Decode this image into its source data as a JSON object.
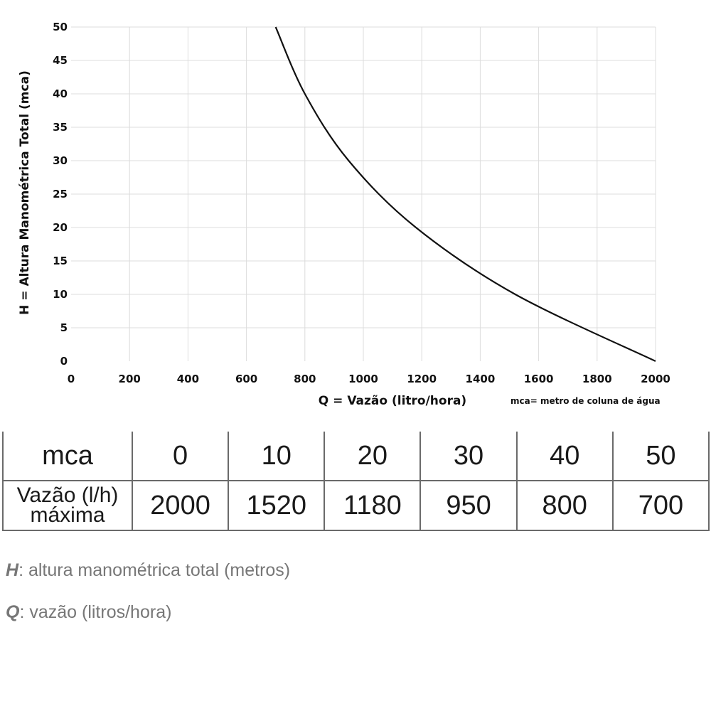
{
  "chart_data": {
    "type": "line",
    "ylabel": "H = Altura Manométrica Total (mca)",
    "xlabel": "Q = Vazão (litro/hora)",
    "note": "mca= metro de coluna de água",
    "xlim": [
      0,
      2000
    ],
    "ylim": [
      0,
      50
    ],
    "x_ticks": [
      "0",
      "200",
      "400",
      "600",
      "800",
      "1000",
      "1200",
      "1400",
      "1600",
      "1800",
      "2000"
    ],
    "y_ticks": [
      "0",
      "5",
      "10",
      "15",
      "20",
      "25",
      "30",
      "35",
      "40",
      "45",
      "50"
    ],
    "grid": true,
    "series": [
      {
        "color": "#111111",
        "points": [
          {
            "x": 700,
            "y": 50
          },
          {
            "x": 800,
            "y": 40
          },
          {
            "x": 950,
            "y": 30
          },
          {
            "x": 1180,
            "y": 20
          },
          {
            "x": 1520,
            "y": 10
          },
          {
            "x": 2000,
            "y": 0
          }
        ]
      }
    ]
  },
  "table": {
    "row1_label": "mca",
    "row1_values": [
      "0",
      "10",
      "20",
      "30",
      "40",
      "50"
    ],
    "row2_label_line1": "Vazão (l/h)",
    "row2_label_line2": "máxima",
    "row2_values": [
      "2000",
      "1520",
      "1180",
      "950",
      "800",
      "700"
    ]
  },
  "legend": {
    "h_symbol": "H",
    "h_text": ": altura manométrica total (metros)",
    "q_symbol": "Q",
    "q_text": ": vazão (litros/hora)"
  }
}
